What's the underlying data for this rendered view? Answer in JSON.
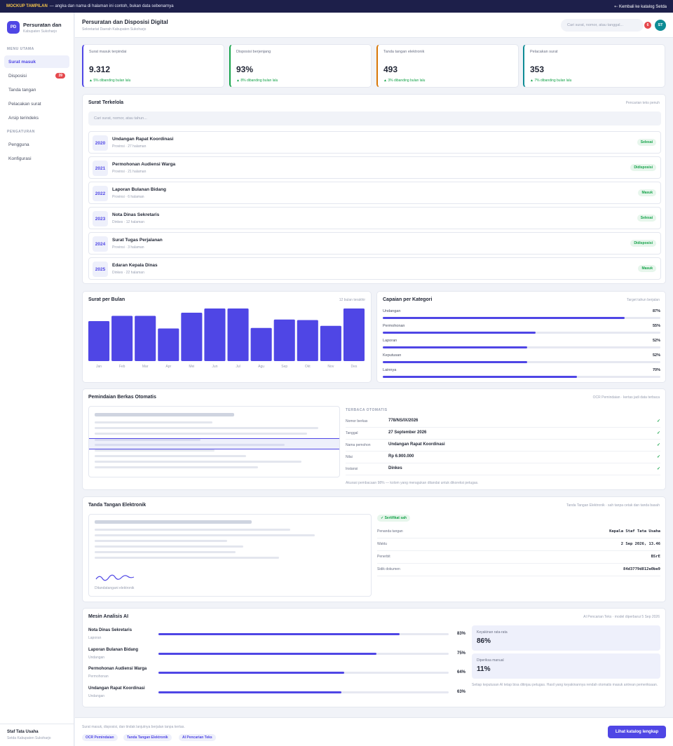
{
  "banner": {
    "tag": "MOCKUP TAMPILAN",
    "text": "— angka dan nama di halaman ini contoh, bukan data sebenarnya",
    "back": "⇠ Kembali ke katalog Setda"
  },
  "brand": {
    "logo": "PD",
    "title": "Persuratan dan",
    "subtitle": "Kabupaten Sukoharjo"
  },
  "sidebar": {
    "section_main": "MENU UTAMA",
    "items": [
      {
        "label": "Surat masuk",
        "active": true
      },
      {
        "label": "Disposisi",
        "badge": "39"
      },
      {
        "label": "Tanda tangan"
      },
      {
        "label": "Pelacakan surat"
      },
      {
        "label": "Arsip terindeks"
      }
    ],
    "section_settings": "PENGATURAN",
    "settings": [
      {
        "label": "Pengguna"
      },
      {
        "label": "Konfigurasi"
      }
    ]
  },
  "user": {
    "name": "Staf Tata Usaha",
    "org": "Setda Kabupaten Sukoharjo"
  },
  "header": {
    "title": "Persuratan dan Disposisi Digital",
    "subtitle": "Sekretariat Daerah Kabupaten Sukoharjo",
    "search_placeholder": "Cari surat, nomor, atau tanggal...",
    "notif_count": "6",
    "avatar": "ST"
  },
  "kpis": [
    {
      "label": "Surat masuk terpindai",
      "value": "9.312",
      "delta": "▲ 5% dibanding bulan lalu",
      "color": "#4f46e5"
    },
    {
      "label": "Disposisi berjenjang",
      "value": "93%",
      "delta": "▲ 8% dibanding bulan lalu",
      "color": "#16a34a"
    },
    {
      "label": "Tanda tangan elektronik",
      "value": "493",
      "delta": "▲ 3% dibanding bulan lalu",
      "color": "#d97706"
    },
    {
      "label": "Pelacakan surat",
      "value": "353",
      "delta": "▲ 7% dibanding bulan lalu",
      "color": "#0e8c95"
    }
  ],
  "managed": {
    "title": "Surat Terkelola",
    "note": "Pencarian teks penuh",
    "search_placeholder": "Cari surat, nomor, atau tahun...",
    "rows": [
      {
        "year": "2020",
        "title": "Undangan Rapat Koordinasi",
        "meta": "Provinsi · 27 halaman",
        "status": "Selesai"
      },
      {
        "year": "2021",
        "title": "Permohonan Audiensi Warga",
        "meta": "Provinsi · 21 halaman",
        "status": "Didisposisi"
      },
      {
        "year": "2022",
        "title": "Laporan Bulanan Bidang",
        "meta": "Provinsi · 6 halaman",
        "status": "Masuk"
      },
      {
        "year": "2023",
        "title": "Nota Dinas Sekretaris",
        "meta": "Dinkes · 12 halaman",
        "status": "Selesai"
      },
      {
        "year": "2024",
        "title": "Surat Tugas Perjalanan",
        "meta": "Provinsi · 3 halaman",
        "status": "Didisposisi"
      },
      {
        "year": "2025",
        "title": "Edaran Kepala Dinas",
        "meta": "Dinkes · 22 halaman",
        "status": "Masuk"
      }
    ]
  },
  "monthly": {
    "title": "Surat per Bulan",
    "note": "12 bulan terakhir"
  },
  "chart_data": {
    "type": "bar",
    "categories": [
      "Jan",
      "Feb",
      "Mar",
      "Apr",
      "Mei",
      "Jun",
      "Jul",
      "Agu",
      "Sep",
      "Okt",
      "Nov",
      "Des"
    ],
    "values": [
      76,
      86,
      86,
      62,
      92,
      100,
      100,
      63,
      79,
      78,
      67,
      100
    ],
    "color": "#4f46e5"
  },
  "categories": {
    "title": "Capaian per Kategori",
    "note": "Target tahun berjalan",
    "items": [
      {
        "name": "Undangan",
        "pct": "87%",
        "value": 87
      },
      {
        "name": "Permohonan",
        "pct": "55%",
        "value": 55
      },
      {
        "name": "Laporan",
        "pct": "52%",
        "value": 52
      },
      {
        "name": "Keputusan",
        "pct": "52%",
        "value": 52
      },
      {
        "name": "Lainnya",
        "pct": "70%",
        "value": 70
      }
    ]
  },
  "ocr": {
    "title": "Pemindaian Berkas Otomatis",
    "note": "OCR Pemindaian · kertas jadi data terbaca",
    "head": "TERBACA OTOMATIS",
    "fields": [
      {
        "key": "Nomor berkas",
        "value": "778/NS/IX/2026"
      },
      {
        "key": "Tanggal",
        "value": "27 September 2026"
      },
      {
        "key": "Nama pemohon",
        "value": "Undangan Rapat Koordinasi"
      },
      {
        "key": "Nilai",
        "value": "Rp 6.900.000"
      },
      {
        "key": "Instansi",
        "value": "Dinkes"
      }
    ],
    "check": "✓",
    "footnote": "Akurasi pembacaan 98% — kolom yang meragukan ditandai untuk dikoreksi petugas."
  },
  "signature": {
    "title": "Tanda Tangan Elektronik",
    "note": "Tanda Tangan Elektronik · sah tanpa cetak dan tanda basah",
    "signed_label": "Ditandatangani elektronik",
    "badge": "✓ Sertifikat sah",
    "fields": [
      {
        "key": "Penanda tangan",
        "value": "Kepala Staf Tata Usaha"
      },
      {
        "key": "Waktu",
        "value": "2 Sep 2026, 13.46"
      },
      {
        "key": "Penerbit",
        "value": "BSrE"
      },
      {
        "key": "Sidik dokumen",
        "value": "84d3779d812e0be9"
      }
    ]
  },
  "ai": {
    "title": "Mesin Analisis AI",
    "note": "AI Pencarian Teks · model diperbarui 5 Sep 2026",
    "rows": [
      {
        "title": "Nota Dinas Sekretaris",
        "sub": "Laporan",
        "pct": "83%",
        "value": 83
      },
      {
        "title": "Laporan Bulanan Bidang",
        "sub": "Undangan",
        "pct": "75%",
        "value": 75
      },
      {
        "title": "Permohonan Audiensi Warga",
        "sub": "Permohonan",
        "pct": "64%",
        "value": 64
      },
      {
        "title": "Undangan Rapat Koordinasi",
        "sub": "Undangan",
        "pct": "63%",
        "value": 63
      }
    ],
    "stats": [
      {
        "label": "Keyakinan rata-rata",
        "value": "86%"
      },
      {
        "label": "Diperiksa manual",
        "value": "11%"
      }
    ],
    "footnote": "Setiap keputusan AI tetap bisa ditinjau petugas. Hasil yang keyakinannya rendah otomatis masuk antrean pemeriksaan."
  },
  "footer": {
    "text": "Surat masuk, disposisi, dan tindak lanjutnya berjalan tanpa kertas.",
    "chips": [
      "OCR Pemindaian",
      "Tanda Tangan Elektronik",
      "AI Pencarian Teks"
    ],
    "cta": "Lihat katalog lengkap"
  }
}
